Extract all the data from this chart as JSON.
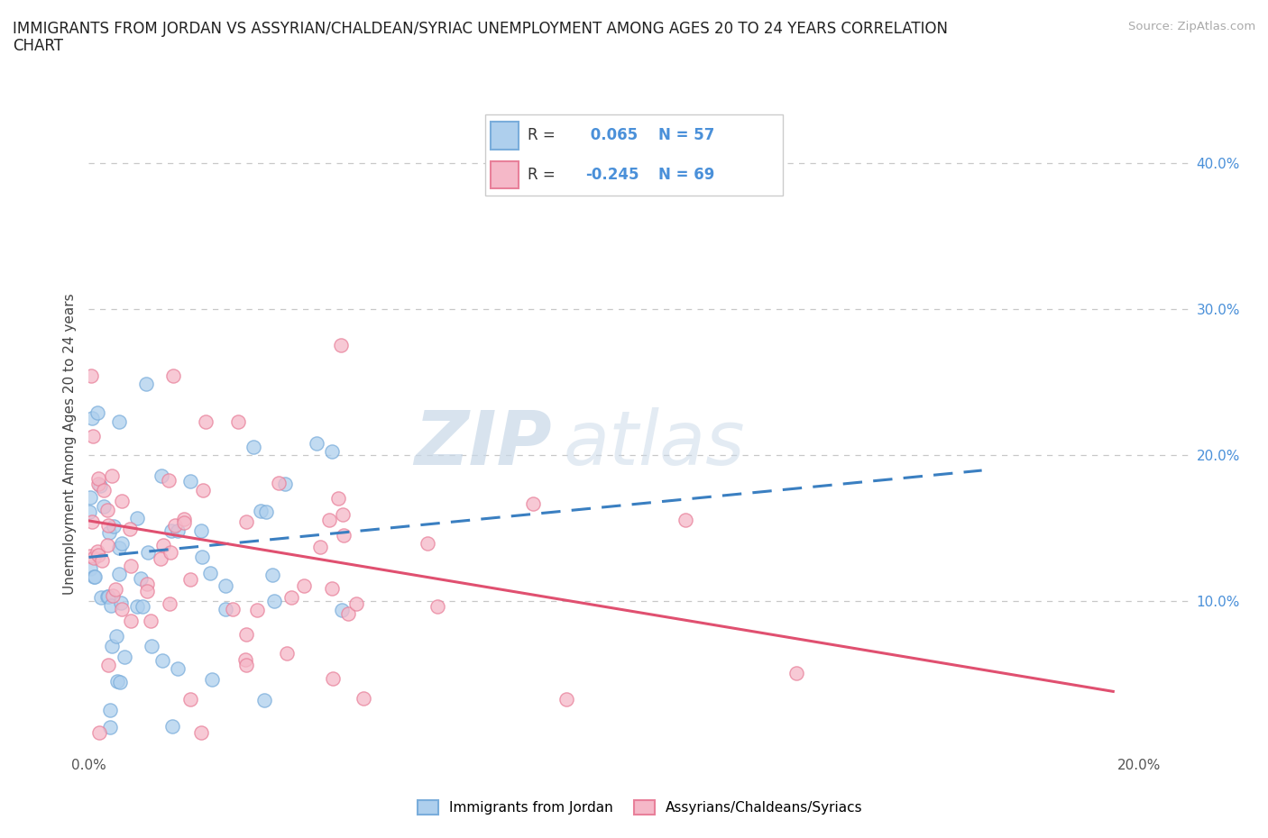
{
  "title_line1": "IMMIGRANTS FROM JORDAN VS ASSYRIAN/CHALDEAN/SYRIAC UNEMPLOYMENT AMONG AGES 20 TO 24 YEARS CORRELATION",
  "title_line2": "CHART",
  "source": "Source: ZipAtlas.com",
  "ylabel": "Unemployment Among Ages 20 to 24 years",
  "xlim": [
    0.0,
    0.21
  ],
  "ylim": [
    -0.005,
    0.42
  ],
  "xticks": [
    0.0,
    0.05,
    0.1,
    0.15,
    0.2
  ],
  "xtick_labels": [
    "0.0%",
    "",
    "",
    "",
    "20.0%"
  ],
  "yticks": [
    0.0,
    0.1,
    0.2,
    0.3,
    0.4
  ],
  "ytick_labels_right": [
    "",
    "10.0%",
    "20.0%",
    "30.0%",
    "40.0%"
  ],
  "watermark_zip": "ZIP",
  "watermark_atlas": "atlas",
  "jordan_fill_color": "#aecfed",
  "jordan_edge_color": "#7aaddb",
  "assyrian_fill_color": "#f5b8c8",
  "assyrian_edge_color": "#e8809a",
  "jordan_line_color": "#3a7fc1",
  "assyrian_line_color": "#e05070",
  "label_color": "#4a90d9",
  "R_jordan": 0.065,
  "N_jordan": 57,
  "R_assyrian": -0.245,
  "N_assyrian": 69,
  "legend_label_jordan": "Immigrants from Jordan",
  "legend_label_assyrian": "Assyrians/Chaldeans/Syriacs",
  "grid_color": "#c8c8c8",
  "background_color": "#ffffff",
  "jordan_intercept": 0.13,
  "jordan_slope": 0.35,
  "assyrian_intercept": 0.155,
  "assyrian_slope": -0.6
}
